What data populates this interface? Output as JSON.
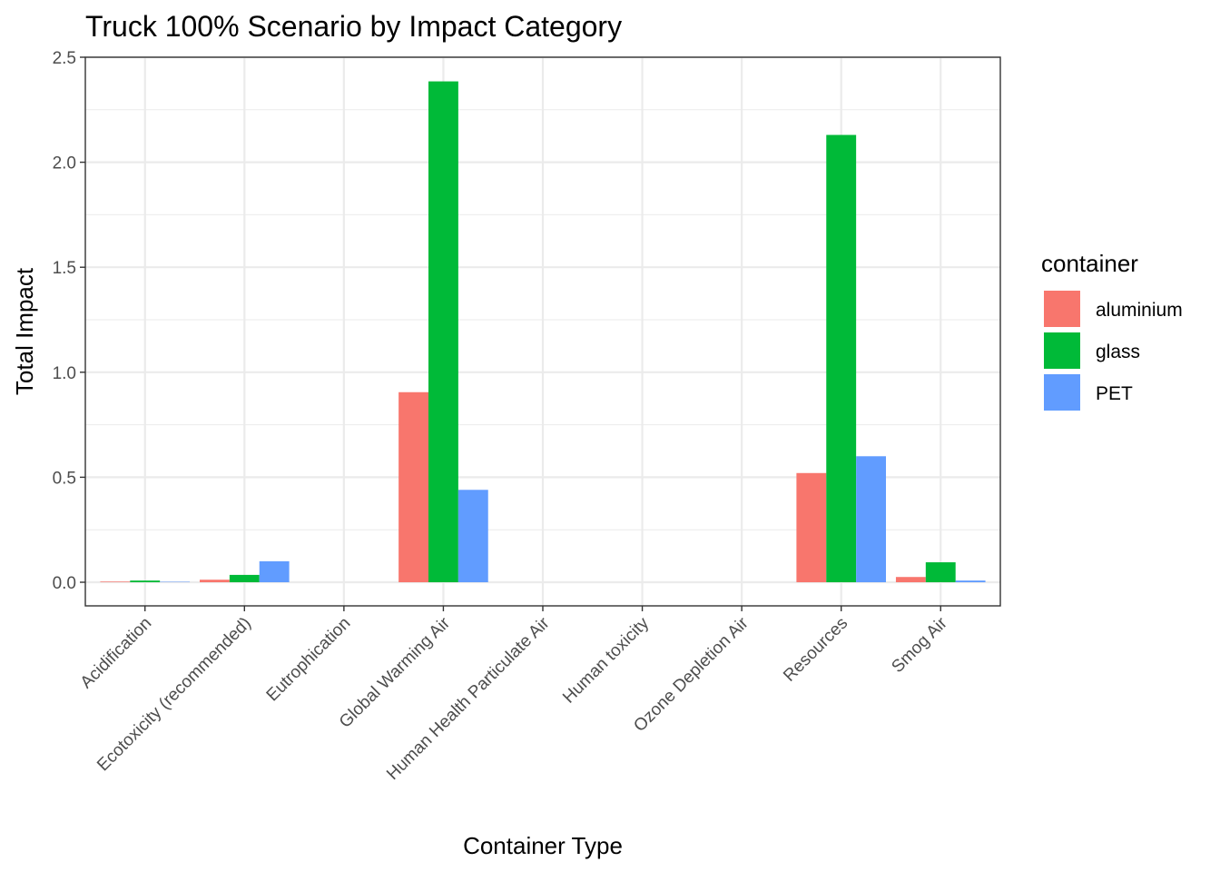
{
  "chart_data": {
    "type": "bar",
    "title": "Truck 100% Scenario by Impact Category",
    "xlabel": "Container Type",
    "ylabel": "Total Impact",
    "ylim": [
      -0.12,
      2.5
    ],
    "yticks": [
      "0.0",
      "0.5",
      "1.0",
      "1.5",
      "2.0",
      "2.5"
    ],
    "ytick_values": [
      0,
      0.5,
      1.0,
      1.5,
      2.0,
      2.5
    ],
    "grid": true,
    "legend_position": "right",
    "legend_title": "container",
    "categories": [
      "Acidification",
      "Ecotoxicity (recommended)",
      "Eutrophication",
      "Global Warming Air",
      "Human Health Particulate Air",
      "Human toxicity",
      "Ozone Depletion Air",
      "Resources",
      "Smog Air"
    ],
    "series": [
      {
        "name": "aluminium",
        "color": "#F8766D",
        "values": [
          0.003,
          0.012,
          0.0,
          0.905,
          0.0,
          0.0,
          0.0,
          0.52,
          0.025
        ]
      },
      {
        "name": "glass",
        "color": "#00BA38",
        "values": [
          0.008,
          0.035,
          0.0,
          2.385,
          0.0,
          0.0,
          0.0,
          2.13,
          0.095
        ]
      },
      {
        "name": "PET",
        "color": "#619CFF",
        "values": [
          0.002,
          0.1,
          0.0,
          0.44,
          0.0,
          0.0,
          0.0,
          0.6,
          0.008
        ]
      }
    ]
  }
}
